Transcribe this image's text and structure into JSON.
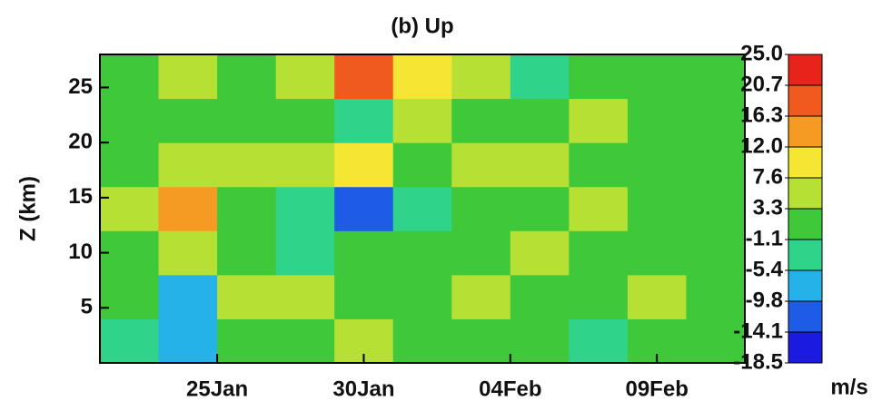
{
  "chart_data": {
    "type": "heatmap",
    "title": "(b) Up",
    "ylabel": "Z (km)",
    "x": [
      22,
      24,
      26,
      28,
      30,
      32,
      34,
      36,
      38,
      40,
      42
    ],
    "y": [
      2,
      6,
      10,
      14,
      18,
      22,
      26
    ],
    "values": [
      [
        -2,
        -8,
        2,
        3,
        6,
        3,
        1,
        2,
        -3,
        -1,
        0
      ],
      [
        0,
        -6,
        4,
        5,
        3,
        2,
        4,
        3,
        2,
        4,
        0
      ],
      [
        3,
        5,
        1,
        -4,
        1,
        0,
        2,
        4,
        3,
        2,
        1
      ],
      [
        5,
        14,
        0,
        -5,
        -14,
        -2,
        1,
        3,
        5,
        2,
        -1
      ],
      [
        2,
        6,
        5,
        6,
        8,
        3,
        4,
        5,
        3,
        2,
        1
      ],
      [
        -1,
        3,
        1,
        2,
        -3,
        6,
        2,
        0,
        4,
        1,
        0
      ],
      [
        2,
        4,
        3,
        5,
        18,
        8,
        5,
        -2,
        3,
        1,
        2
      ]
    ],
    "xlim": [
      21,
      43
    ],
    "xticks": [
      {
        "value": 25,
        "label": "25Jan"
      },
      {
        "value": 30,
        "label": "30Jan"
      },
      {
        "value": 35,
        "label": "04Feb"
      },
      {
        "value": 40,
        "label": "09Feb"
      }
    ],
    "ylim": [
      0,
      28
    ],
    "yticks": [
      5,
      10,
      15,
      20,
      25
    ],
    "colorbar": {
      "units": "m/s",
      "levels": [
        -18.5,
        -14.1,
        -9.8,
        -5.4,
        -1.1,
        3.3,
        7.6,
        {
          "value": 12,
          "label": "12.0"
        },
        16.3,
        20.7,
        {
          "value": 25,
          "label": "25.0"
        }
      ],
      "colors": [
        "#1a1ae0",
        "#1e5ce8",
        "#25b2e8",
        "#2fd48a",
        "#3ec83a",
        "#b6e034",
        "#f5e634",
        "#f59a23",
        "#f05a1e",
        "#e8231c"
      ]
    }
  }
}
